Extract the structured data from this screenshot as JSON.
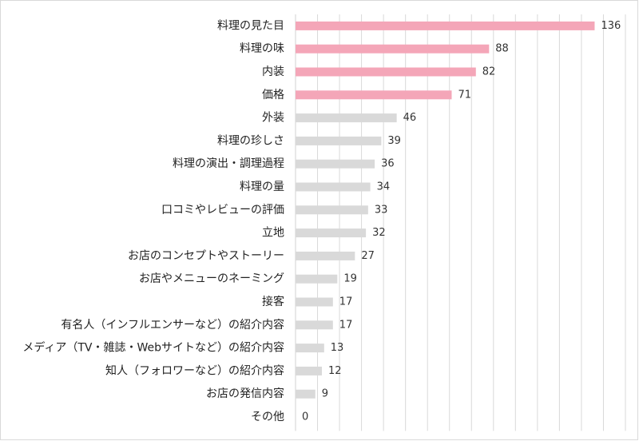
{
  "chart_data": {
    "type": "bar",
    "orientation": "horizontal",
    "title": "",
    "xlabel": "",
    "ylabel": "",
    "xlim": [
      0,
      150
    ],
    "grid": true,
    "legend": "none",
    "highlight_color": "#f4a6b8",
    "default_color": "#d9d9d9",
    "gridline_color": "#d9d9d9",
    "categories": [
      "料理の見た目",
      "料理の味",
      "内装",
      "価格",
      "外装",
      "料理の珍しさ",
      "料理の演出・調理過程",
      "料理の量",
      "口コミやレビューの評価",
      "立地",
      "お店のコンセプトやストーリー",
      "お店やメニューのネーミング",
      "接客",
      "有名人（インフルエンサーなど）の紹介内容",
      "メディア（TV・雑誌・Webサイトなど）の紹介内容",
      "知人（フォロワーなど）の紹介内容",
      "お店の発信内容",
      "その他"
    ],
    "values": [
      136,
      88,
      82,
      71,
      46,
      39,
      36,
      34,
      33,
      32,
      27,
      19,
      17,
      17,
      13,
      12,
      9,
      0
    ],
    "highlighted": [
      true,
      true,
      true,
      true,
      false,
      false,
      false,
      false,
      false,
      false,
      false,
      false,
      false,
      false,
      false,
      false,
      false,
      false
    ]
  }
}
